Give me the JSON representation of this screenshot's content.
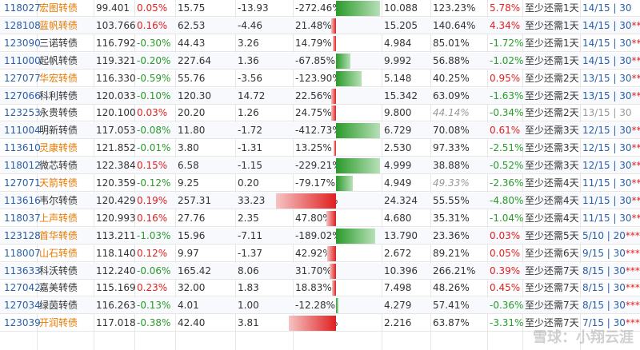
{
  "colors": {
    "up": "#e02020",
    "down": "#2a9a2a",
    "link": "#2a5fa8",
    "hot": "#e87a00"
  },
  "rows": [
    {
      "code": "118027",
      "name": "宏图转债",
      "hot": true,
      "price": "99.401",
      "chg": "0.05%",
      "chg_dir": "up",
      "ppx": "15.75",
      "cvp": "-13.93",
      "prem": "-272.46%",
      "prem_val": -272.46,
      "ytm": "10.088",
      "ratio": "123.23%",
      "rate": "5.78%",
      "rate_dir": "down",
      "days": "至少还需1天",
      "rating": "14/15 | 30",
      "stars": ""
    },
    {
      "code": "128108",
      "name": "蓝帆转债",
      "hot": true,
      "price": "103.766",
      "chg": "0.16%",
      "chg_dir": "up",
      "ppx": "62.53",
      "cvp": "-4.46",
      "prem": "21.48%",
      "prem_val": 21.48,
      "ytm": "15.205",
      "ratio": "140.64%",
      "rate": "4.34%",
      "rate_dir": "down",
      "days": "至少还需1天",
      "rating": "14/15 | 30",
      "stars": "*****"
    },
    {
      "code": "123090",
      "name": "三诺转债",
      "hot": false,
      "price": "116.792",
      "chg": "-0.30%",
      "chg_dir": "down",
      "ppx": "44.43",
      "cvp": "3.26",
      "prem": "14.79%",
      "prem_val": 14.79,
      "ytm": "4.984",
      "ratio": "85.01%",
      "rate": "-1.72%",
      "rate_dir": "down",
      "days": "至少还需1天",
      "rating": "14/15 | 30",
      "stars": "***"
    },
    {
      "code": "111000",
      "name": "起帆转债",
      "hot": false,
      "price": "119.321",
      "chg": "-0.20%",
      "chg_dir": "down",
      "ppx": "227.64",
      "cvp": "1.36",
      "prem": "-67.85%",
      "prem_val": -67.85,
      "ytm": "9.992",
      "ratio": "56.88%",
      "rate": "-1.02%",
      "rate_dir": "down",
      "days": "至少还需1天",
      "rating": "14/15 | 30",
      "stars": "*****"
    },
    {
      "code": "127077",
      "name": "华宏转债",
      "hot": true,
      "price": "116.330",
      "chg": "-0.59%",
      "chg_dir": "down",
      "ppx": "55.76",
      "cvp": "-3.56",
      "prem": "-123.90%",
      "prem_val": -123.9,
      "ytm": "5.148",
      "ratio": "40.25%",
      "rate": "0.95%",
      "rate_dir": "down",
      "days": "至少还需2天",
      "rating": "13/15 | 30",
      "stars": "*****"
    },
    {
      "code": "127066",
      "name": "科利转债",
      "hot": false,
      "price": "120.033",
      "chg": "-0.10%",
      "chg_dir": "down",
      "ppx": "120.30",
      "cvp": "14.72",
      "prem": "22.56%",
      "prem_val": 22.56,
      "ytm": "15.342",
      "ratio": "63.09%",
      "rate": "-1.63%",
      "rate_dir": "down",
      "days": "至少还需2天",
      "rating": "13/15 | 30",
      "stars": "*****"
    },
    {
      "code": "123253",
      "name": "永贵转债",
      "hot": false,
      "price": "120.100",
      "chg": "0.03%",
      "chg_dir": "up",
      "ppx": "20.20",
      "cvp": "1.26",
      "prem": "24.75%",
      "prem_val": 24.75,
      "ytm": "9.800",
      "ratio": "44.14%",
      "ratio_muted": true,
      "rate": "-0.34%",
      "rate_dir": "down",
      "days": "至少还需2天",
      "rating": "13/15 | 30",
      "stars": "",
      "rating_muted": true
    },
    {
      "code": "111004",
      "name": "明新转债",
      "hot": false,
      "price": "117.053",
      "chg": "-0.08%",
      "chg_dir": "down",
      "ppx": "11.80",
      "cvp": "-1.72",
      "prem": "-412.73%",
      "prem_val": -412.73,
      "ytm": "6.729",
      "ratio": "70.08%",
      "rate": "0.61%",
      "rate_dir": "down",
      "days": "至少还需3天",
      "rating": "12/15 | 30",
      "stars": "***"
    },
    {
      "code": "113610",
      "name": "灵康转债",
      "hot": true,
      "price": "121.852",
      "chg": "-0.01%",
      "chg_dir": "down",
      "ppx": "3.80",
      "cvp": "-1.31",
      "prem": "13.25%",
      "prem_val": 13.25,
      "ytm": "2.530",
      "ratio": "97.33%",
      "rate": "-2.51%",
      "rate_dir": "down",
      "days": "至少还需3天",
      "rating": "12/15 | 30",
      "stars": "*****"
    },
    {
      "code": "118012",
      "name": "微芯转债",
      "hot": false,
      "price": "122.384",
      "chg": "0.15%",
      "chg_dir": "up",
      "ppx": "6.58",
      "cvp": "-1.15",
      "prem": "-229.21%",
      "prem_val": -229.21,
      "ytm": "4.999",
      "ratio": "38.88%",
      "rate": "-0.52%",
      "rate_dir": "down",
      "days": "至少还需3天",
      "rating": "12/15 | 30",
      "stars": "*****"
    },
    {
      "code": "127071",
      "name": "天箭转债",
      "hot": true,
      "price": "120.359",
      "chg": "-0.12%",
      "chg_dir": "down",
      "ppx": "9.25",
      "cvp": "0.20",
      "prem": "-79.17%",
      "prem_val": -79.17,
      "ytm": "4.949",
      "ratio": "49.33%",
      "ratio_muted": true,
      "rate": "-2.36%",
      "rate_dir": "down",
      "days": "至少还需4天",
      "rating": "11/15 | 30",
      "stars": "*****"
    },
    {
      "code": "113616",
      "name": "韦尔转债",
      "hot": false,
      "price": "120.429",
      "chg": "0.19%",
      "chg_dir": "up",
      "ppx": "257.31",
      "cvp": "33.23",
      "prem": "497.66%",
      "prem_val": 497.66,
      "ytm": "24.324",
      "ratio": "55.55%",
      "rate": "-4.80%",
      "rate_dir": "down",
      "days": "至少还需4天",
      "rating": "11/15 | 30",
      "stars": "*****"
    },
    {
      "code": "118037",
      "name": "上声转债",
      "hot": true,
      "price": "120.993",
      "chg": "0.16%",
      "chg_dir": "up",
      "ppx": "27.76",
      "cvp": "2.35",
      "prem": "47.80%",
      "prem_val": 47.8,
      "ytm": "4.680",
      "ratio": "35.31%",
      "rate": "-1.04%",
      "rate_dir": "down",
      "days": "至少还需4天",
      "rating": "11/15 | 30",
      "stars": "*****"
    },
    {
      "code": "123128",
      "name": "首华转债",
      "hot": true,
      "price": "113.211",
      "chg": "-1.03%",
      "chg_dir": "down",
      "ppx": "15.96",
      "cvp": "-7.11",
      "prem": "-189.02%",
      "prem_val": -189.02,
      "ytm": "13.790",
      "ratio": "23.36%",
      "rate": "0.03%",
      "rate_dir": "down",
      "days": "至少还需5天",
      "rating": "5/10 | 20",
      "stars": "*****"
    },
    {
      "code": "118007",
      "name": "山石转债",
      "hot": true,
      "price": "118.140",
      "chg": "0.12%",
      "chg_dir": "up",
      "ppx": "9.97",
      "cvp": "-1.37",
      "prem": "42.92%",
      "prem_val": 42.92,
      "ytm": "2.672",
      "ratio": "89.21%",
      "rate": "0.05%",
      "rate_dir": "down",
      "days": "至少还需6天",
      "rating": "9/15 | 30",
      "stars": "*****"
    },
    {
      "code": "113633",
      "name": "科沃转债",
      "hot": false,
      "price": "112.240",
      "chg": "-0.06%",
      "chg_dir": "down",
      "ppx": "165.42",
      "cvp": "8.06",
      "prem": "31.70%",
      "prem_val": 31.7,
      "ytm": "10.396",
      "ratio": "266.21%",
      "rate": "0.39%",
      "rate_dir": "down",
      "days": "至少还需7天",
      "rating": "8/15 | 30",
      "stars": "*****"
    },
    {
      "code": "127042",
      "name": "嘉美转债",
      "hot": false,
      "price": "115.169",
      "chg": "0.23%",
      "chg_dir": "up",
      "ppx": "32.00",
      "cvp": "1.83",
      "prem": "18.83%",
      "prem_val": 18.83,
      "ytm": "7.498",
      "ratio": "48.26%",
      "rate": "0.45%",
      "rate_dir": "down",
      "days": "至少还需7天",
      "rating": "8/15 | 30",
      "stars": "*****"
    },
    {
      "code": "127034",
      "name": "绿茵转债",
      "hot": false,
      "price": "116.263",
      "chg": "-0.13%",
      "chg_dir": "down",
      "ppx": "4.01",
      "cvp": "1.00",
      "prem": "-12.28%",
      "prem_val": -12.28,
      "ytm": "4.279",
      "ratio": "57.41%",
      "rate": "-0.36%",
      "rate_dir": "down",
      "days": "至少还需7天",
      "rating": "8/15 | 30",
      "stars": "*****"
    },
    {
      "code": "123039",
      "name": "开润转债",
      "hot": true,
      "price": "117.018",
      "chg": "-0.38%",
      "chg_dir": "down",
      "ppx": "42.40",
      "cvp": "3.81",
      "prem": "228.45%",
      "prem_val": 228.45,
      "ytm": "2.216",
      "ratio": "63.87%",
      "rate": "-3.31%",
      "rate_dir": "down",
      "days": "至少还需7天",
      "rating": "7/15 | 30",
      "stars": "*****"
    }
  ],
  "watermark": "雪球：小翔云涯"
}
